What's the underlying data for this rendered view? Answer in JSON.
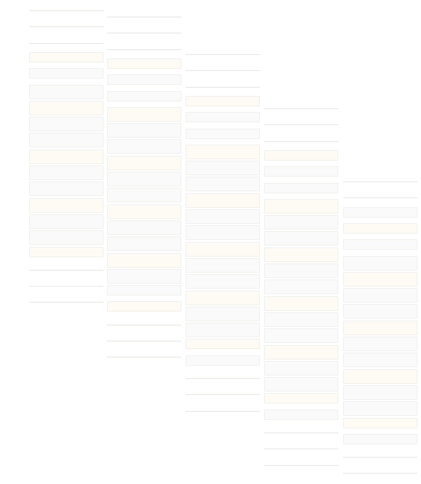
{
  "colors": {
    "background": "#ffffff",
    "bar_fill_warm": "#fdfbf4",
    "bar_fill_cool": "#fafafa",
    "bar_border": "#efefec",
    "line": "#e4e4e2"
  }
}
